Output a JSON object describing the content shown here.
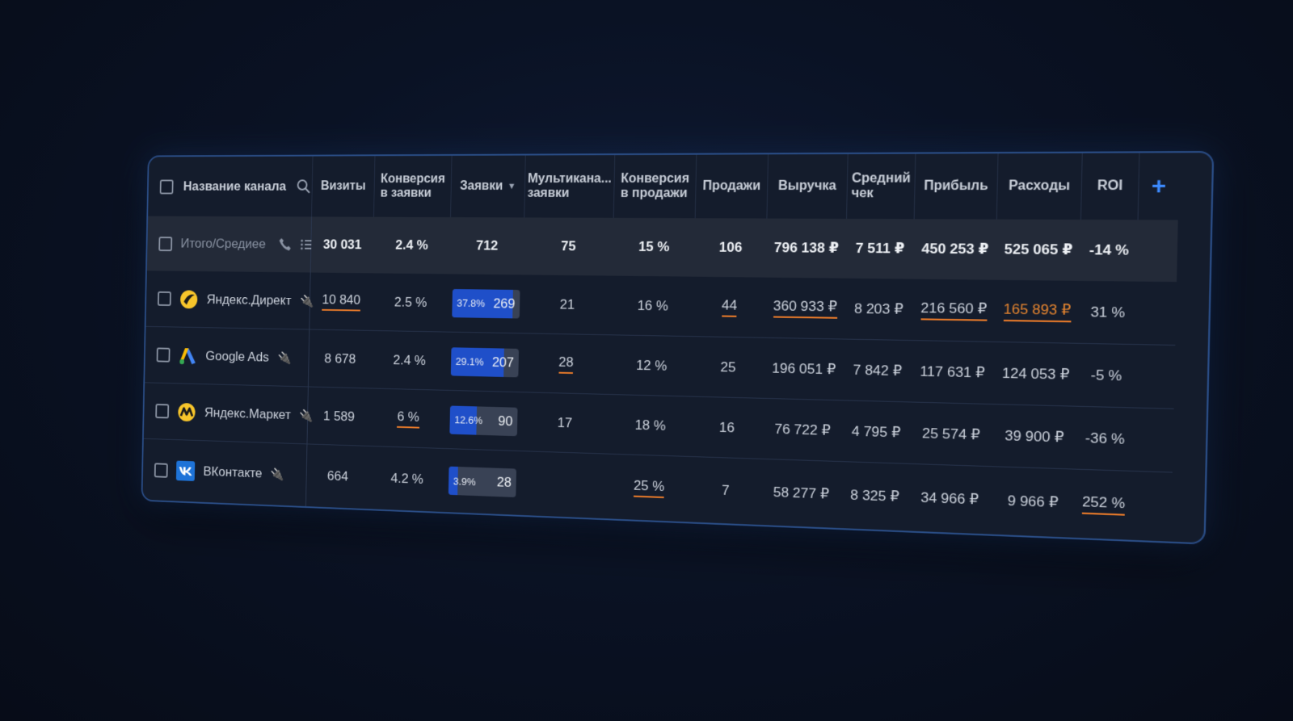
{
  "header": {
    "channel": "Название канала",
    "visits": "Визиты",
    "conv_leads": [
      "Конверсия",
      "в заявки"
    ],
    "leads": "Заявки",
    "multichannel": [
      "Мультикана...",
      "заявки"
    ],
    "conv_sales": [
      "Конверсия",
      "в продажи"
    ],
    "sales": "Продажи",
    "revenue": "Выручка",
    "avg_check": [
      "Средний",
      "чек"
    ],
    "profit": "Прибыль",
    "expenses": "Расходы",
    "roi": "ROI",
    "add": "+"
  },
  "total": {
    "label": "Итого/Средиее",
    "visits": "30 031",
    "conv_leads": "2.4 %",
    "leads": "712",
    "multichannel": "75",
    "conv_sales": "15 %",
    "sales": "106",
    "revenue": "796 138 ₽",
    "avg_check": "7 511 ₽",
    "profit": "450 253 ₽",
    "expenses": "525 065 ₽",
    "roi": "-14 %"
  },
  "rows": [
    {
      "name": "Яндекс.Директ",
      "visits": "10 840",
      "conv_leads": "2.5 %",
      "lead_pct": "37.8%",
      "lead_share": 0.9,
      "leads": "269",
      "multichannel": "21",
      "conv_sales": "16 %",
      "sales": "44",
      "revenue": "360 933 ₽",
      "avg_check": "8 203 ₽",
      "profit": "216 560 ₽",
      "expenses": "165 893 ₽",
      "roi": "31 %"
    },
    {
      "name": "Google Ads",
      "visits": "8 678",
      "conv_leads": "2.4 %",
      "lead_pct": "29.1%",
      "lead_share": 0.78,
      "leads": "207",
      "multichannel": "28",
      "conv_sales": "12 %",
      "sales": "25",
      "revenue": "196 051 ₽",
      "avg_check": "7 842 ₽",
      "profit": "117 631 ₽",
      "expenses": "124 053 ₽",
      "roi": "-5 %"
    },
    {
      "name": "Яндекс.Маркет",
      "visits": "1 589",
      "conv_leads": "6 %",
      "lead_pct": "12.6%",
      "lead_share": 0.4,
      "leads": "90",
      "multichannel": "17",
      "conv_sales": "18 %",
      "sales": "16",
      "revenue": "76 722 ₽",
      "avg_check": "4 795 ₽",
      "profit": "25 574 ₽",
      "expenses": "39 900 ₽",
      "roi": "-36 %"
    },
    {
      "name": "ВКонтакте",
      "visits": "664",
      "conv_leads": "4.2 %",
      "lead_pct": "3.9%",
      "lead_share": 0.14,
      "leads": "28",
      "multichannel": "",
      "conv_sales": "25 %",
      "sales": "7",
      "revenue": "58 277 ₽",
      "avg_check": "8 325 ₽",
      "profit": "34 966 ₽",
      "expenses": "9 966 ₽",
      "roi": "252 %"
    }
  ],
  "colors": {
    "accent": "#1f4fc9",
    "highlight": "#e87a2a",
    "border": "#2a4d86"
  }
}
